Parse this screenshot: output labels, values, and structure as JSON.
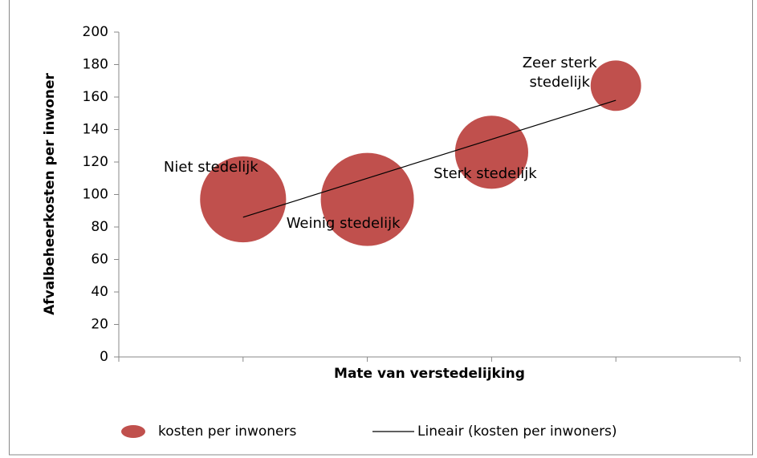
{
  "chart_data": {
    "type": "bubble",
    "xlabel": "Mate van verstedelijking",
    "ylabel": "Afvalbeheerkosten per inwoner",
    "categories": [
      "Niet stedelijk",
      "Weinig stedelijk",
      "Sterk stedelijk",
      "Zeer sterk stedelijk"
    ],
    "x": [
      1,
      2,
      3,
      4
    ],
    "series": [
      {
        "name": "kosten per inwoners",
        "color": "#c0504d",
        "values": [
          97,
          97,
          126,
          167
        ],
        "sizes": [
          29,
          34,
          21,
          10
        ]
      }
    ],
    "trendline": {
      "name": "Lineair (kosten per inwoners)",
      "color": "#000000",
      "x": [
        1,
        4
      ],
      "values": [
        86,
        158
      ]
    },
    "xlim": [
      0,
      5
    ],
    "xticks": [
      0,
      1,
      2,
      3,
      4,
      5
    ],
    "ylim": [
      0,
      200
    ],
    "yticks": [
      0,
      20,
      40,
      60,
      80,
      100,
      120,
      140,
      160,
      180,
      200
    ],
    "grid": false,
    "legend": "bottom"
  }
}
